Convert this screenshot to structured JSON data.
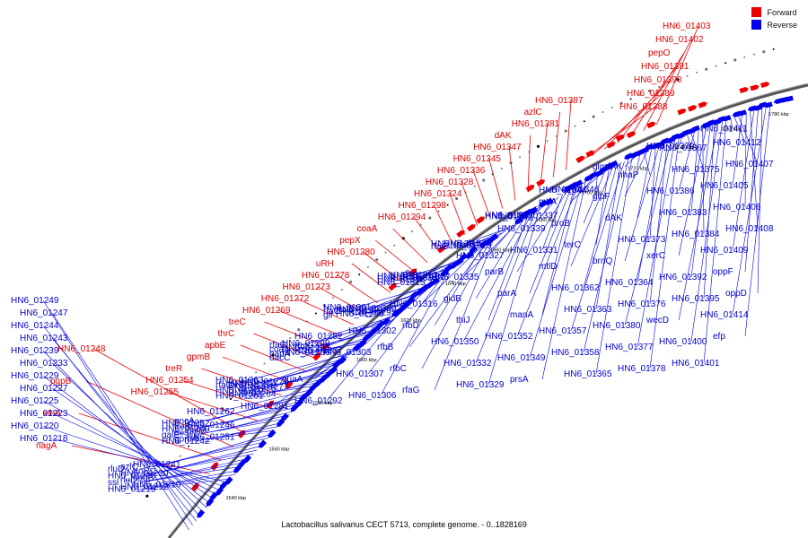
{
  "caption": "Lactobacillus salivarius CECT 5713, complete genome. - 0..1828169",
  "legend": [
    {
      "label": "Forward",
      "color": "#ee0000"
    },
    {
      "label": "Reverse",
      "color": "#0000ee"
    }
  ],
  "scale_ticks": [
    "1540 kbp",
    "1560 kbp",
    "1580 kbp",
    "1600 kbp",
    "1620 kbp",
    "1640 kbp",
    "1660 kbp",
    "1680 kbp",
    "1700 kbp",
    "1720 kbp",
    "1740 kbp",
    "1760 kbp",
    "1780 kbp"
  ],
  "forward_genes": [
    "nagA",
    "xthA",
    "pgpB",
    "HN6_01248",
    "HN6_01255",
    "HN6_01254",
    "treR",
    "gpmB",
    "apbE",
    "thrC",
    "treC",
    "HN6_01269",
    "HN6_01272",
    "HN6_01273",
    "HN6_01278",
    "uRH",
    "HN6_01280",
    "pepX",
    "coaA",
    "HN6_01294",
    "HN6_01298",
    "HN6_01324",
    "HN6_01328",
    "HN6_01336",
    "HN6_01345",
    "HN6_01347",
    "dAK",
    "HN6_01381",
    "azlC",
    "HN6_01387",
    "HN6_01388",
    "HN6_01389",
    "HN6_01390",
    "HN6_01391",
    "pepO",
    "HN6_01402",
    "HN6_01403"
  ],
  "reverse_genes": [
    "HN6_01249",
    "HN6_01247",
    "HN6_01244",
    "HN6_01243",
    "HN6_01239",
    "HN6_01233",
    "HN6_01229",
    "HN6_01227",
    "HN6_01225",
    "HN6_01223",
    "HN6_01220",
    "HN6_01218",
    "HN6_01215",
    "HN6_01212",
    "HN6_01210",
    "ssl",
    "rluD",
    "nagB",
    "HN6_01228",
    "HN6_01230",
    "troR",
    "rluD",
    "azlC",
    "HN6_01241",
    "HN6_01242",
    "gpmA",
    "HN6_01251",
    "galE",
    "aes",
    "galM",
    "HN6_01240",
    "treB",
    "HN6_01246",
    "HN6_01252",
    "pncA",
    "HN6_01262",
    "HN6_01261",
    "HN6_01264",
    "thrA",
    "HN6_01270",
    "HN6_01275",
    "HN6_01277",
    "rfaG",
    "HN6_01274",
    "HN6_01276",
    "HN6_01263",
    "thrB",
    "HN6_01281",
    "napA",
    "HN6_01286",
    "HN6_01287",
    "coaA",
    "HN6_01293",
    "rfbX",
    "rfaG",
    "HN6_01299",
    "HN6_01282",
    "dacC",
    "guaA",
    "HN6_01292",
    "glf",
    "HN6_01296",
    "HN6_01295",
    "rfaG",
    "HN6_01291",
    "HN6_01300",
    "HN6_01301",
    "rfaG",
    "HN6_01302",
    "HN6_01303",
    "HN6_01307",
    "HN6_01306",
    "HN6_01311",
    "HN6_01314",
    "HN6_01317",
    "HN6_01312",
    "HN6_01313",
    "rfbA",
    "HN6_01315",
    "HN6_01316",
    "rfbD",
    "rfbB",
    "rfbC",
    "rfaG",
    "rfaG",
    "HN6_01325",
    "parB",
    "HN6_01334",
    "HN6_01326",
    "HN6_01327",
    "HN6_01335",
    "gidB",
    "thiJ",
    "HN6_01350",
    "HN6_01332",
    "HN6_01329",
    "HN6_01333",
    "thiD",
    "HN6_01337",
    "HN6_01338",
    "HN6_01339",
    "HN6_01331",
    "parB",
    "parA",
    "manA",
    "HN6_01352",
    "HN6_01349",
    "prsA",
    "HN6_01344",
    "HN6_01346",
    "proA",
    "mtlA",
    "proB",
    "terC",
    "mtlD",
    "HN6_01362",
    "HN6_01363",
    "HN6_01357",
    "HN6_01358",
    "HN6_01365",
    "glmS",
    "dAK",
    "nhaP",
    "glpF",
    "dAK",
    "HN6_01373",
    "brnQ",
    "HN6_01364",
    "HN6_01376",
    "HN6_01380",
    "HN6_01377",
    "HN6_01378",
    "HN6_01379",
    "HN6_01367",
    "HN6_01375",
    "HN6_01386",
    "HN6_01383",
    "HN6_01384",
    "xerC",
    "HN6_01392",
    "HN6_01395",
    "wecD",
    "HN6_01400",
    "HN6_01401",
    "HN6_01411",
    "HN6_01412",
    "HN6_01407",
    "HN6_01405",
    "HN6_01406",
    "HN6_01408",
    "HN6_01409",
    "oppF",
    "oppD",
    "HN6_01414",
    "efp"
  ]
}
